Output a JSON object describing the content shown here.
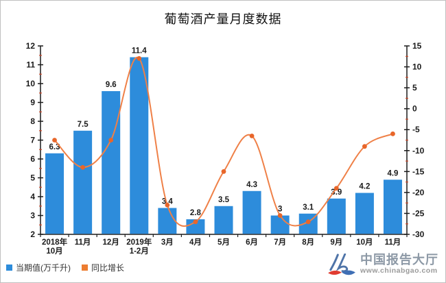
{
  "title": "葡萄酒产量月度数据",
  "legend": {
    "items": [
      {
        "label": "当期值(万千升)",
        "color": "#2d8cdb"
      },
      {
        "label": "同比增长",
        "color": "#ed7d31"
      }
    ]
  },
  "watermark": {
    "name": "中国报告大厅",
    "url": "www.chinabgao.com",
    "icon": "chinabgao-logo-icon"
  },
  "chart_data": {
    "type": "bar+line",
    "title": "葡萄酒产量月度数据",
    "categories": [
      [
        "2018年",
        "10月"
      ],
      [
        "11月"
      ],
      [
        "12月"
      ],
      [
        "2019年",
        "1-2月"
      ],
      [
        "3月"
      ],
      [
        "4月"
      ],
      [
        "5月"
      ],
      [
        "6月"
      ],
      [
        "7月"
      ],
      [
        "8月"
      ],
      [
        "9月"
      ],
      [
        "10月"
      ],
      [
        "11月"
      ]
    ],
    "series": [
      {
        "name": "当期值(万千升)",
        "type": "bar",
        "axis": "left",
        "color": "#2d8cdb",
        "values": [
          6.3,
          7.5,
          9.6,
          11.4,
          3.4,
          2.8,
          3.5,
          4.3,
          3,
          3.1,
          3.9,
          4.2,
          4.9
        ]
      },
      {
        "name": "同比增长",
        "type": "line",
        "axis": "right",
        "color": "#ef8047",
        "marker_color": "#e8662a",
        "smooth": true,
        "values": [
          -7.5,
          -14,
          -7.5,
          12,
          -23,
          -27,
          -15,
          -6.5,
          -25.5,
          -27,
          -19,
          -9,
          -6
        ]
      }
    ],
    "left_axis": {
      "min": 2,
      "max": 12,
      "step": 1,
      "minor_step": 0.5
    },
    "right_axis": {
      "min": -30,
      "max": 15,
      "step": 5,
      "minor_step": 2.5
    },
    "axis_color": "#1a1a1a",
    "minor_tick_color": "#d24726",
    "grid": false,
    "legend_position": "bottom-left"
  }
}
